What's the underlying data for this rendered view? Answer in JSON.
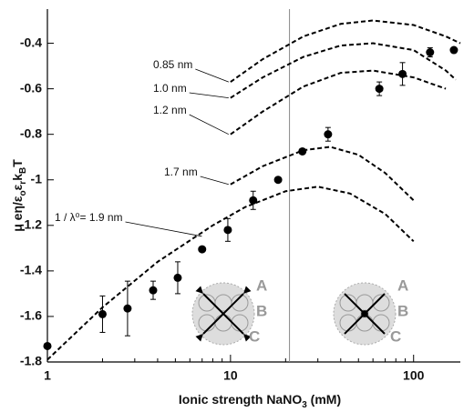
{
  "chart_data": {
    "type": "scatter",
    "xlabel": [
      "Ionic strength NaNO",
      "3",
      " (mM)"
    ],
    "ylabel": [
      "μ eη/ε",
      "o",
      "ε",
      "r",
      "k",
      "B",
      "T"
    ],
    "xscale": "log",
    "xlim": [
      1,
      180
    ],
    "ylim": [
      -1.8,
      -0.25
    ],
    "xticks": [
      1,
      10,
      100
    ],
    "xminor": [
      2,
      3,
      4,
      5,
      6,
      7,
      8,
      9,
      20,
      30,
      40,
      50,
      60,
      70,
      80,
      90
    ],
    "yticks": [
      -1.8,
      -1.6,
      -1.4,
      -1.2,
      -1,
      -0.8,
      -0.6,
      -0.4
    ],
    "vline": 21,
    "points": {
      "color": "#000000",
      "x": [
        1,
        2.0,
        2.74,
        3.78,
        5.15,
        7.0,
        9.67,
        13.3,
        18.2,
        24.7,
        34.1,
        65,
        87,
        123,
        166
      ],
      "y": [
        -1.73,
        -1.59,
        -1.565,
        -1.485,
        -1.43,
        -1.305,
        -1.22,
        -1.09,
        -1.0,
        -0.875,
        -0.8,
        -0.6,
        -0.535,
        -0.44,
        -0.43
      ],
      "err": [
        null,
        0.08,
        0.12,
        0.04,
        0.07,
        null,
        0.05,
        0.04,
        null,
        null,
        0.03,
        0.03,
        0.05,
        0.02,
        0.01
      ]
    },
    "curves": [
      {
        "label": "0.85 nm",
        "x": [
          10,
          15,
          25,
          40,
          60,
          100,
          150,
          180
        ],
        "y": [
          -0.57,
          -0.47,
          -0.37,
          -0.315,
          -0.3,
          -0.32,
          -0.37,
          -0.4
        ]
      },
      {
        "label": "1.0 nm",
        "x": [
          10,
          15,
          25,
          40,
          60,
          100,
          150,
          170
        ],
        "y": [
          -0.64,
          -0.55,
          -0.46,
          -0.41,
          -0.4,
          -0.43,
          -0.52,
          -0.56
        ]
      },
      {
        "label": "1.2 nm",
        "x": [
          10,
          15,
          25,
          40,
          60,
          100,
          150
        ],
        "y": [
          -0.8,
          -0.7,
          -0.59,
          -0.53,
          -0.52,
          -0.55,
          -0.6
        ]
      },
      {
        "label": "1.7 nm",
        "x": [
          10,
          15,
          25,
          35,
          50,
          70,
          100
        ],
        "y": [
          -1.02,
          -0.94,
          -0.87,
          -0.855,
          -0.89,
          -0.97,
          -1.09
        ]
      },
      {
        "label": "1 / λ⁰= 1.9 nm",
        "x": [
          1,
          2,
          4,
          8,
          12,
          20,
          30,
          45,
          70,
          100
        ],
        "y": [
          -1.79,
          -1.56,
          -1.36,
          -1.2,
          -1.12,
          -1.05,
          -1.03,
          -1.06,
          -1.15,
          -1.27
        ]
      }
    ],
    "insets": [
      {
        "labels": [
          "A",
          "B",
          "C"
        ]
      },
      {
        "labels": [
          "A",
          "B",
          "C"
        ]
      }
    ]
  }
}
